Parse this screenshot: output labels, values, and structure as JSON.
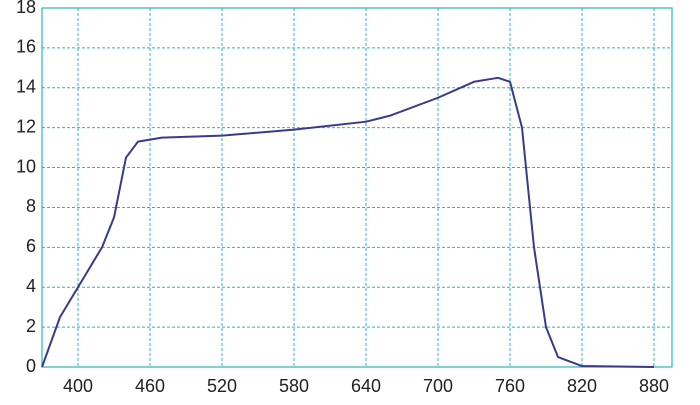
{
  "chart_data": {
    "type": "line",
    "x": [
      370,
      385,
      400,
      420,
      430,
      440,
      450,
      470,
      520,
      580,
      640,
      660,
      700,
      730,
      750,
      760,
      770,
      780,
      790,
      800,
      820,
      880
    ],
    "series": [
      {
        "color": "#3a3a8c",
        "values": [
          0,
          2.5,
          4,
          6,
          7.5,
          10.5,
          11.3,
          11.5,
          11.6,
          11.9,
          12.3,
          12.6,
          13.5,
          14.3,
          14.5,
          14.3,
          12,
          6,
          2,
          0.5,
          0.05,
          0
        ]
      }
    ],
    "xlim": [
      370,
      895
    ],
    "xticks": [
      400,
      460,
      520,
      580,
      640,
      700,
      760,
      820,
      880
    ],
    "ylim": [
      0,
      18
    ],
    "yticks": [
      0,
      2,
      4,
      6,
      8,
      10,
      12,
      14,
      16,
      18
    ],
    "grid": true
  }
}
